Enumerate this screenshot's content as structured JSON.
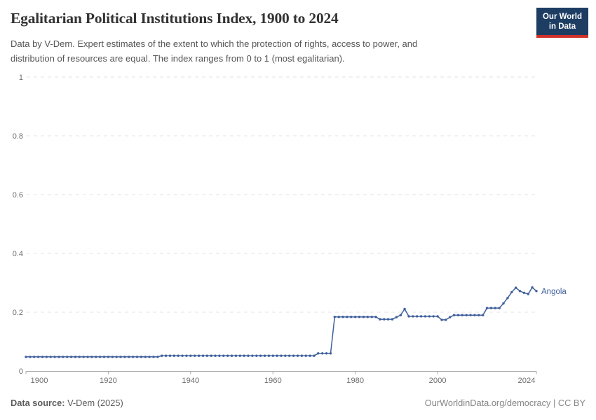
{
  "header": {
    "title": "Egalitarian Political Institutions Index, 1900 to 2024",
    "subtitle": {
      "line1": "Data by V-Dem. Expert estimates of the extent to which the protection of rights, access to power, and",
      "line2": "distribution of resources are equal. The index ranges from 0 to 1 (most egalitarian)."
    },
    "logo": {
      "line1": "Our World",
      "line2": "in Data",
      "bg_color": "#1d3d63",
      "accent_color": "#cf322a"
    }
  },
  "chart_data": {
    "type": "line",
    "title": "Egalitarian Political Institutions Index, 1900 to 2024",
    "xlabel": "",
    "ylabel": "",
    "xlim": [
      1900,
      2024
    ],
    "ylim": [
      0,
      1
    ],
    "x_ticks": [
      1900,
      1920,
      1940,
      1960,
      1980,
      2000,
      2024
    ],
    "y_ticks": [
      {
        "v": 0,
        "label": "0"
      },
      {
        "v": 0.2,
        "label": "0.2"
      },
      {
        "v": 0.4,
        "label": "0.4"
      },
      {
        "v": 0.6,
        "label": "0.6"
      },
      {
        "v": 0.8,
        "label": "0.8"
      },
      {
        "v": 1,
        "label": "1"
      }
    ],
    "grid": "dashed-horizontal",
    "legend": "inline-label-right",
    "series": [
      {
        "name": "Angola",
        "color": "#3e5f9c",
        "x_start": 1900,
        "x_step": 1,
        "values": [
          0.048,
          0.048,
          0.048,
          0.048,
          0.048,
          0.048,
          0.048,
          0.048,
          0.048,
          0.048,
          0.048,
          0.048,
          0.048,
          0.048,
          0.048,
          0.048,
          0.048,
          0.048,
          0.048,
          0.048,
          0.048,
          0.048,
          0.048,
          0.048,
          0.048,
          0.048,
          0.048,
          0.048,
          0.048,
          0.048,
          0.048,
          0.048,
          0.048,
          0.052,
          0.052,
          0.052,
          0.052,
          0.052,
          0.052,
          0.052,
          0.052,
          0.052,
          0.052,
          0.052,
          0.052,
          0.052,
          0.052,
          0.052,
          0.052,
          0.052,
          0.052,
          0.052,
          0.052,
          0.052,
          0.052,
          0.052,
          0.052,
          0.052,
          0.052,
          0.052,
          0.052,
          0.052,
          0.052,
          0.052,
          0.052,
          0.052,
          0.052,
          0.052,
          0.052,
          0.052,
          0.052,
          0.06,
          0.06,
          0.06,
          0.06,
          0.184,
          0.184,
          0.184,
          0.184,
          0.184,
          0.184,
          0.184,
          0.184,
          0.184,
          0.184,
          0.184,
          0.176,
          0.176,
          0.176,
          0.176,
          0.183,
          0.19,
          0.211,
          0.186,
          0.186,
          0.186,
          0.186,
          0.186,
          0.186,
          0.186,
          0.186,
          0.174,
          0.174,
          0.183,
          0.19,
          0.19,
          0.19,
          0.19,
          0.19,
          0.19,
          0.19,
          0.19,
          0.214,
          0.214,
          0.214,
          0.214,
          0.23,
          0.248,
          0.268,
          0.283,
          0.272,
          0.266,
          0.262,
          0.284,
          0.272
        ]
      }
    ]
  },
  "footer": {
    "source_label": "Data source:",
    "source_value": " V-Dem (2025)",
    "credit": "OurWorldinData.org/democracy | CC BY"
  }
}
